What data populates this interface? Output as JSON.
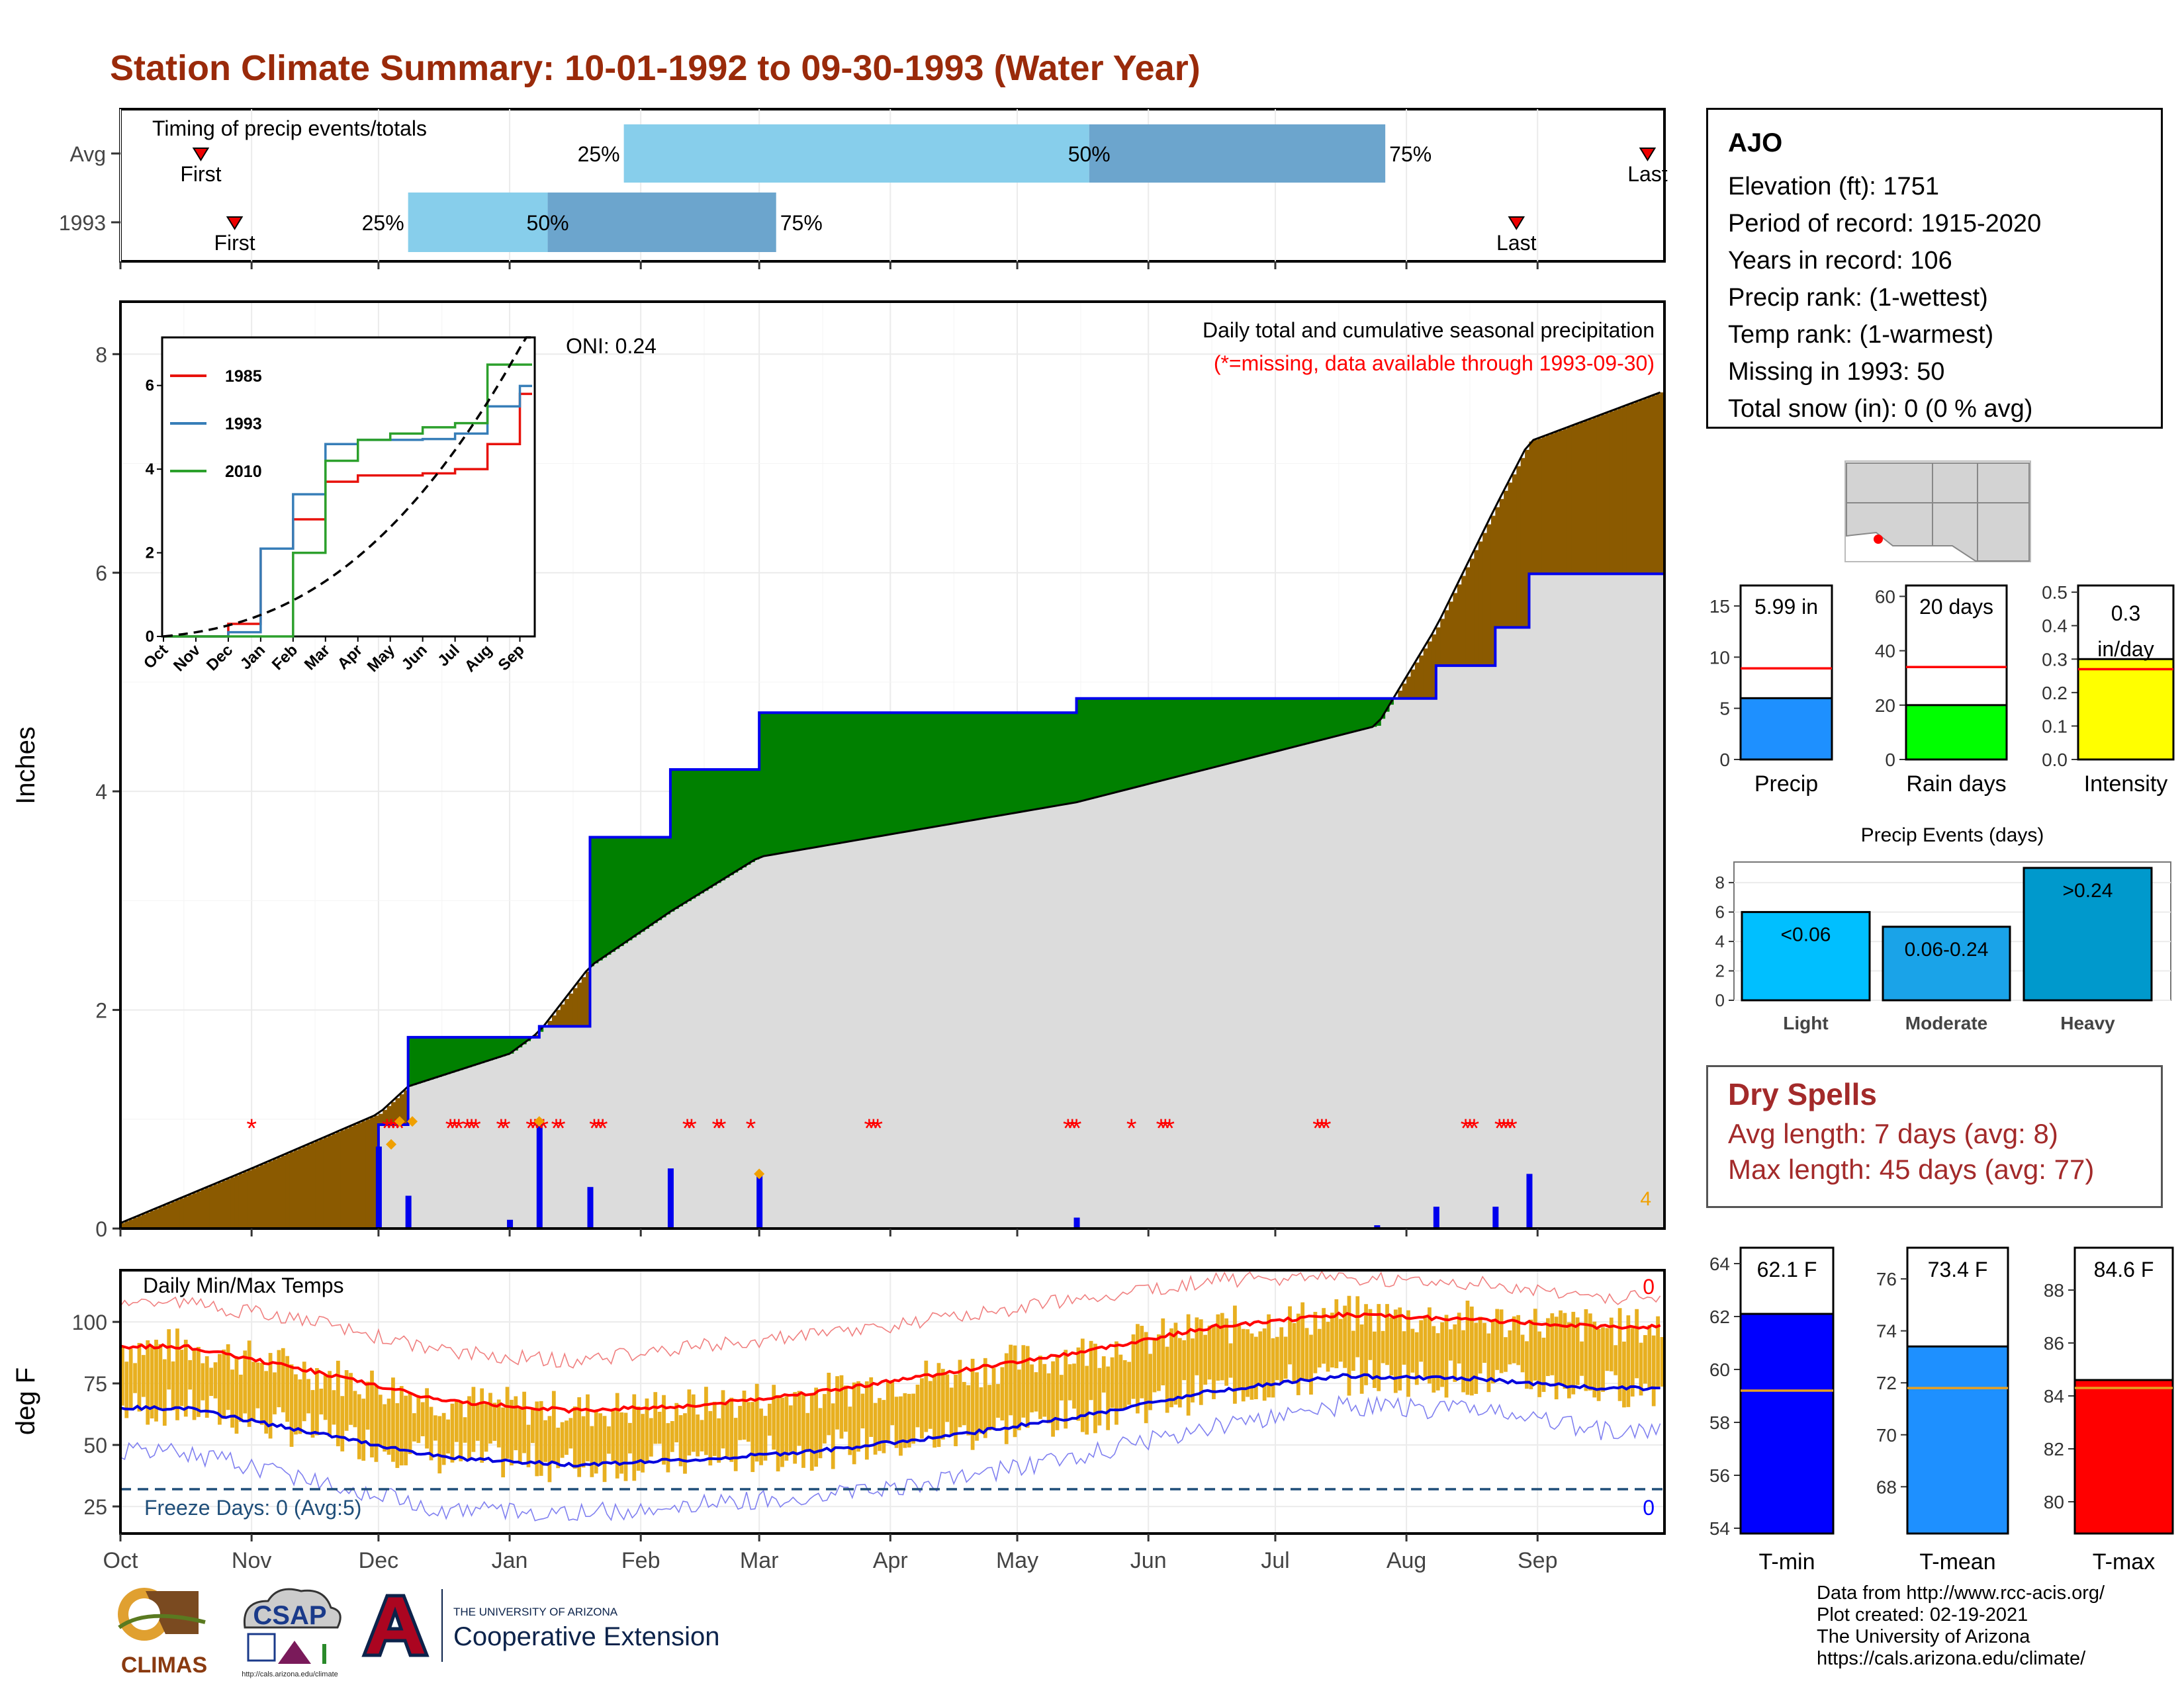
{
  "title": "Station Climate Summary: 10-01-1992 to 09-30-1993 (Water Year)",
  "colors": {
    "title": "#9A2A0A",
    "brown": "#8B5A00",
    "green": "#008000",
    "grey": "#DCDCDC",
    "blue_line": "#0000EE",
    "q_light": "#87CEEB",
    "q_dark": "#6CA5CD",
    "temp_bar": "#E8B020",
    "tmax_line": "#FF0000",
    "tmin_line": "#0000DD",
    "freeze": "#1F4E79"
  },
  "timing": {
    "label": "Timing of precip events/totals",
    "rows": [
      {
        "name": "Avg",
        "first_label": "First",
        "last_label": "Last",
        "first_day": 19,
        "last_day": 361,
        "q25": 119,
        "q50": 229,
        "q75": 299,
        "q25_label": "25%",
        "q50_label": "50%",
        "q75_label": "75%"
      },
      {
        "name": "1993",
        "first_label": "First",
        "last_label": "Last",
        "first_day": 27,
        "last_day": 330,
        "q25": 68,
        "q50": 101,
        "q75": 155,
        "q25_label": "25%",
        "q50_label": "50%",
        "q75_label": "75%"
      }
    ]
  },
  "precip_panel": {
    "ylabel": "Inches",
    "header": "Daily total and cumulative seasonal precipitation",
    "missing_note": "(*=missing, data available through 1993-09-30)",
    "oni": "ONI: 0.24",
    "corner_count": "4",
    "month_labels": [
      "Oct",
      "Nov",
      "Dec",
      "Jan",
      "Feb",
      "Mar",
      "Apr",
      "May",
      "Jun",
      "Jul",
      "Aug",
      "Sep"
    ],
    "inset": {
      "legend": [
        "1985",
        "1993",
        "2010"
      ],
      "legend_colors": [
        "#E8120C",
        "#377EB8",
        "#2CA02C"
      ],
      "month_labels": [
        "Oct",
        "Nov",
        "Dec",
        "Jan",
        "Feb",
        "Mar",
        "Apr",
        "May",
        "Jun",
        "Jul",
        "Aug",
        "Sep"
      ],
      "y_ticks": [
        "0",
        "2",
        "4",
        "6"
      ]
    }
  },
  "temp_panel": {
    "ylabel": "deg F",
    "header": "Daily Min/Max Temps",
    "freeze_label": "Freeze Days: 0 (Avg:5)",
    "top_count": "0",
    "bottom_count": "0",
    "month_labels": [
      "Oct",
      "Nov",
      "Dec",
      "Jan",
      "Feb",
      "Mar",
      "Apr",
      "May",
      "Jun",
      "Jul",
      "Aug",
      "Sep"
    ]
  },
  "station": {
    "name": "AJO",
    "lines": [
      "Elevation (ft): 1751",
      "Period of record: 1915-2020",
      "Years in record: 106",
      "Precip rank:  (1-wettest)",
      "Temp rank:  (1-warmest)",
      "Missing in 1993: 50",
      "Total snow (in): 0 (0 % avg)"
    ]
  },
  "summary_bars": {
    "precip": {
      "label": "Precip",
      "value_label": "5.99 in",
      "value": 5.99,
      "avg": 8.9,
      "ymax": 17,
      "ticks": [
        "0",
        "5",
        "10",
        "15"
      ],
      "color": "#1E90FF"
    },
    "rain_days": {
      "label": "Rain days",
      "value_label": "20 days",
      "value": 20,
      "avg": 34,
      "ymax": 64,
      "ticks": [
        "0",
        "20",
        "40",
        "60"
      ],
      "color": "#00FF00"
    },
    "intensity": {
      "label": "Intensity",
      "value_label": "0.3",
      "value_label2": "in/day",
      "value": 0.3,
      "avg": 0.27,
      "ymax": 0.52,
      "ticks": [
        "0.0",
        "0.1",
        "0.2",
        "0.3",
        "0.4",
        "0.5"
      ],
      "color": "#FFFF00"
    }
  },
  "precip_events": {
    "title": "Precip Events (days)",
    "ticks": [
      "0",
      "2",
      "4",
      "6",
      "8"
    ],
    "bars": [
      {
        "label": "Light",
        "value_label": "<0.06",
        "value": 6,
        "color": "#00BFFF"
      },
      {
        "label": "Moderate",
        "value_label": "0.06-0.24",
        "value": 5,
        "color": "#1AA3E8"
      },
      {
        "label": "Heavy",
        "value_label": ">0.24",
        "value": 9,
        "color": "#0099CC"
      }
    ]
  },
  "dry_spells": {
    "title": "Dry Spells",
    "avg_line": "Avg length: 7 days (avg: 8)",
    "max_line": "Max length: 45 days (avg: 77)"
  },
  "temp_summary": {
    "tmin": {
      "label": "T-min",
      "value_label": "62.1 F",
      "value": 62.1,
      "avg": 59.2,
      "ymin": 53.8,
      "ymax": 64.6,
      "ticks": [
        "54",
        "56",
        "58",
        "60",
        "62",
        "64"
      ],
      "color": "#0000FF"
    },
    "tmean": {
      "label": "T-mean",
      "value_label": "73.4 F",
      "value": 73.4,
      "avg": 71.8,
      "ymin": 66.2,
      "ymax": 77.2,
      "ticks": [
        "68",
        "70",
        "72",
        "74",
        "76"
      ],
      "color": "#1E90FF"
    },
    "tmax": {
      "label": "T-max",
      "value_label": "84.6 F",
      "value": 84.6,
      "avg": 84.3,
      "ymin": 78.8,
      "ymax": 89.6,
      "ticks": [
        "80",
        "82",
        "84",
        "86",
        "88"
      ],
      "color": "#FF0000"
    }
  },
  "footer": {
    "lines": [
      "Data from http://www.rcc-acis.org/",
      "Plot created: 02-19-2021",
      "The University of Arizona",
      "https://cals.arizona.edu/climate/"
    ],
    "logo_climas": "CLIMAS",
    "logo_csap": "CSAP",
    "logo_csap_url": "http://cals.arizona.edu/climate",
    "logo_ua_small": "THE UNIVERSITY OF ARIZONA",
    "logo_ua_big": "Cooperative Extension"
  },
  "chart_data": [
    {
      "type": "bar",
      "title": "Timing of precip events/totals",
      "categories": [
        "Avg",
        "1993"
      ],
      "series": [
        {
          "name": "25%",
          "values": [
            119,
            68
          ]
        },
        {
          "name": "50%",
          "values": [
            229,
            101
          ]
        },
        {
          "name": "75%",
          "values": [
            299,
            155
          ]
        }
      ]
    },
    {
      "type": "area",
      "title": "Daily total and cumulative seasonal precipitation",
      "ylabel": "Inches",
      "ylim": [
        0,
        8.4
      ],
      "x": [
        "10-01",
        "11-01",
        "12-01",
        "12-08",
        "01-01",
        "01-08",
        "01-20",
        "02-08",
        "03-01",
        "05-15",
        "07-25",
        "08-08",
        "08-22",
        "08-30",
        "09-30"
      ],
      "series": [
        {
          "name": "1993 cumulative",
          "values": [
            0,
            0,
            0.95,
            1.75,
            1.75,
            1.85,
            3.58,
            4.2,
            4.72,
            4.85,
            4.85,
            5.15,
            5.5,
            5.99,
            5.99
          ]
        },
        {
          "name": "average cumulative",
          "values": [
            0.05,
            0.55,
            1.05,
            1.3,
            1.6,
            1.8,
            2.4,
            2.9,
            3.4,
            3.9,
            4.6,
            5.5,
            6.6,
            7.2,
            7.65
          ]
        },
        {
          "name": "daily precip",
          "values": [
            0,
            0,
            0.75,
            0.3,
            0.08,
            0.98,
            0.38,
            0.55,
            0.5,
            0.1,
            0.03,
            0.2,
            0.2,
            0.5,
            0
          ]
        }
      ]
    },
    {
      "type": "line",
      "title": "Daily Min/Max Temps",
      "ylabel": "deg F",
      "ylim": [
        15,
        120
      ],
      "x": [
        "Oct",
        "Nov",
        "Dec",
        "Jan",
        "Feb",
        "Mar",
        "Apr",
        "May",
        "Jun",
        "Jul",
        "Aug",
        "Sep"
      ],
      "series": [
        {
          "name": "avg max",
          "values": [
            90,
            80,
            68,
            64,
            66,
            72,
            80,
            88,
            98,
            103,
            101,
            98
          ]
        },
        {
          "name": "avg min",
          "values": [
            65,
            55,
            45,
            42,
            44,
            48,
            54,
            62,
            72,
            78,
            77,
            73
          ]
        },
        {
          "name": "record max",
          "values": [
            108,
            100,
            88,
            84,
            90,
            95,
            102,
            110,
            117,
            118,
            116,
            110
          ]
        },
        {
          "name": "record min",
          "values": [
            47,
            36,
            24,
            22,
            26,
            30,
            36,
            46,
            58,
            66,
            64,
            56
          ]
        }
      ]
    },
    {
      "type": "line",
      "title": "",
      "categories": [
        "Oct",
        "Nov",
        "Dec",
        "Jan",
        "Feb",
        "Mar",
        "Apr",
        "May",
        "Jun",
        "Jul",
        "Aug",
        "Sep"
      ],
      "ylim": [
        0,
        7.2
      ],
      "series": [
        {
          "name": "1985",
          "values": [
            0,
            0,
            0.3,
            2.1,
            2.8,
            3.7,
            3.85,
            3.85,
            3.9,
            4.0,
            4.6,
            5.8
          ]
        },
        {
          "name": "1993",
          "values": [
            0,
            0,
            0.1,
            2.1,
            3.4,
            4.6,
            4.7,
            4.7,
            4.72,
            4.85,
            5.5,
            5.99
          ]
        },
        {
          "name": "2010",
          "values": [
            0,
            0,
            0,
            0,
            2.0,
            4.2,
            4.7,
            4.85,
            5.0,
            5.1,
            6.5,
            6.5
          ]
        }
      ]
    },
    {
      "type": "bar",
      "title": "Precip Events (days)",
      "categories": [
        "Light",
        "Moderate",
        "Heavy"
      ],
      "values": [
        6,
        5,
        9
      ],
      "ylim": [
        0,
        9
      ]
    }
  ]
}
